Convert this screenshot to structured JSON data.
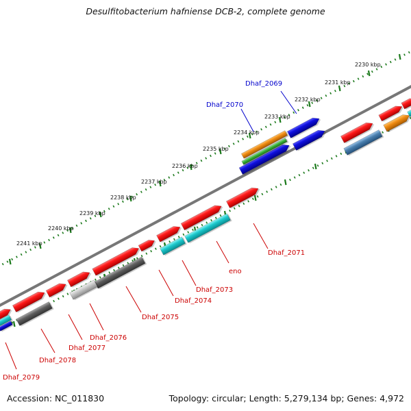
{
  "title": "Desulfitobacterium hafniense DCB-2, complete genome",
  "footer": {
    "accession": "Accession: NC_011830",
    "stats": "Topology: circular; Length: 5,279,134 bp; Genes: 4,972"
  },
  "scale_labels": [
    "2230 kbp",
    "2231 kbp",
    "2232 kbp",
    "2233 kbp",
    "2234 kbp",
    "2235 kbp",
    "2236 kbp",
    "2237 kbp",
    "2238 kbp",
    "2239 kbp",
    "2240 kbp",
    "2241 kbp"
  ],
  "gene_labels": [
    "Dhaf_2069",
    "Dhaf_2070",
    "Dhaf_2071",
    "eno",
    "Dhaf_2073",
    "Dhaf_2074",
    "Dhaf_2075",
    "Dhaf_2076",
    "Dhaf_2077",
    "Dhaf_2078",
    "Dhaf_2079"
  ],
  "colors": {
    "forward_cds": "#e8121a",
    "reverse_cds": "#e8121a",
    "blue_feature": "#0a10d8",
    "cyan_feature": "#14c8cc",
    "orange_feature": "#f08c14",
    "green_feature": "#3cb43c",
    "gray_feature": "#5a5a5a",
    "steel_feature": "#4a7fae",
    "scale_ticks": "#1c7a1c",
    "label_blue": "#0000cc",
    "label_red": "#cc0000"
  }
}
